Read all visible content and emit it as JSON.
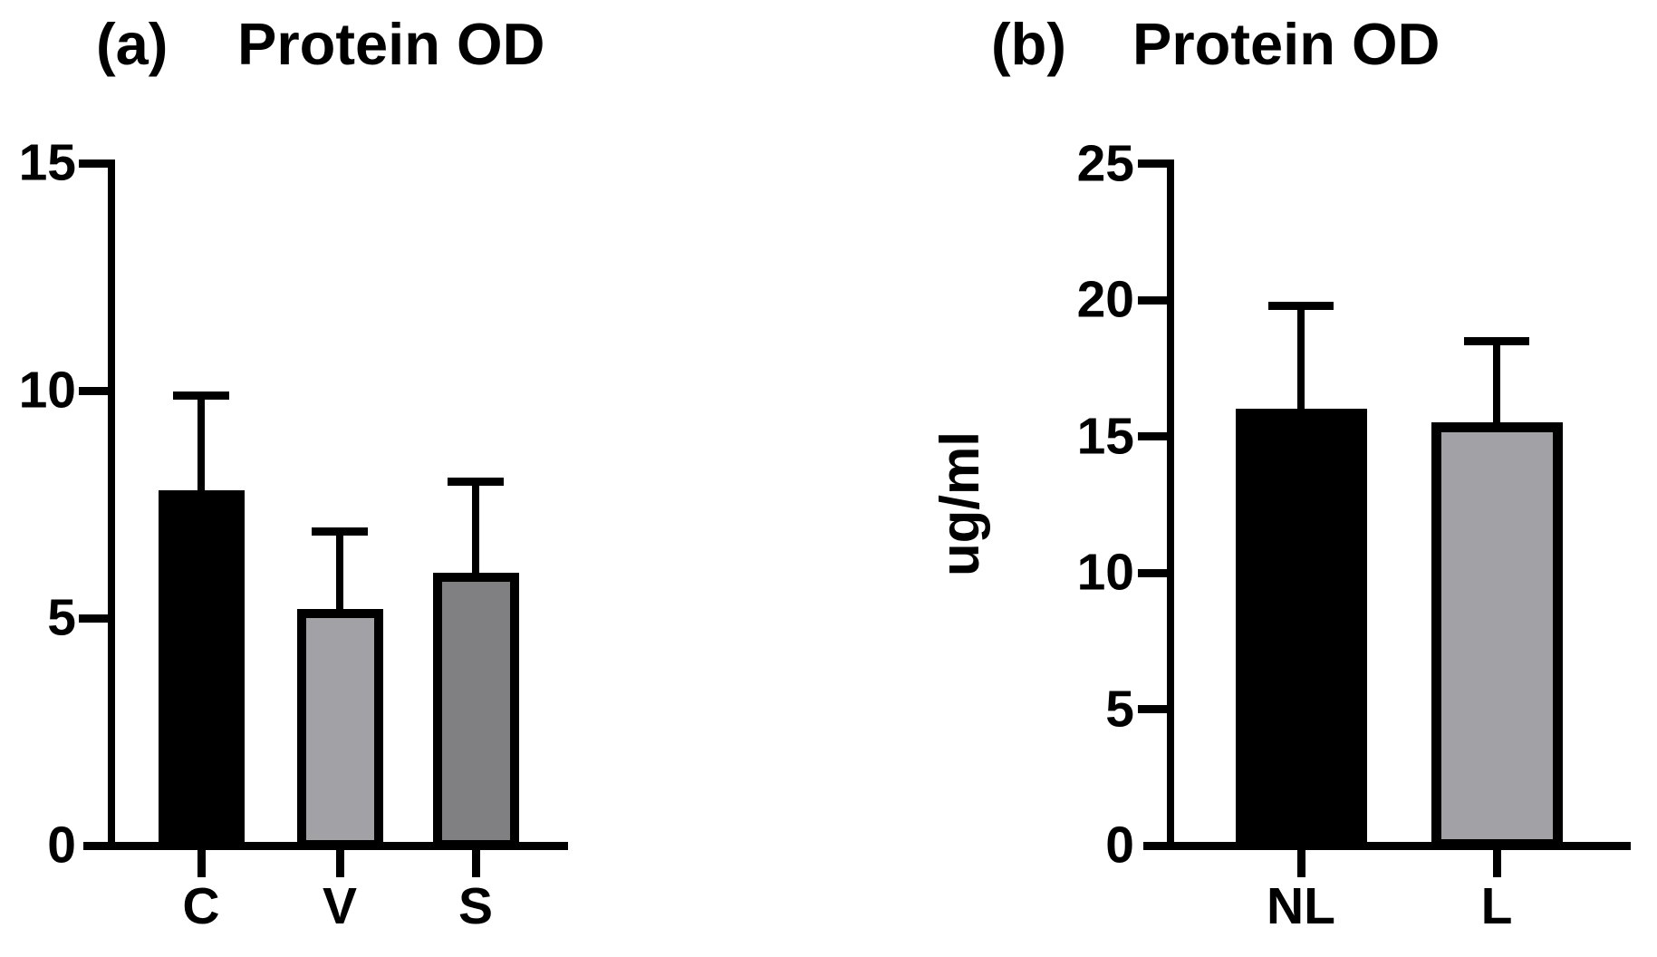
{
  "figure": {
    "background_color": "#ffffff",
    "text_color": "#000000"
  },
  "chart_data": [
    {
      "type": "bar",
      "panel_label": "(a)",
      "title": "Protein OD",
      "categories": [
        "C",
        "V",
        "S"
      ],
      "values": [
        7.8,
        5.2,
        6.0
      ],
      "error_plus": [
        2.1,
        1.7,
        2.0
      ],
      "bar_colors": [
        "#000000",
        "#a1a1a6",
        "#808083"
      ],
      "bar_border_color": "#000000",
      "xlabel": "",
      "ylabel": "",
      "ylim": [
        0,
        15
      ],
      "yticks": [
        "0",
        "5",
        "10",
        "15"
      ],
      "grid": "off",
      "legend": "none",
      "error_bar_style": "upper-only-with-cap"
    },
    {
      "type": "bar",
      "panel_label": "(b)",
      "title": "Protein OD",
      "categories": [
        "NL",
        "L"
      ],
      "values": [
        16.0,
        15.5
      ],
      "error_plus": [
        3.8,
        3.0
      ],
      "bar_colors": [
        "#000000",
        "#a1a1a6"
      ],
      "bar_border_color": "#000000",
      "xlabel": "",
      "ylabel": "ug/ml",
      "ylim": [
        0,
        25
      ],
      "yticks": [
        "0",
        "5",
        "10",
        "15",
        "20",
        "25"
      ],
      "grid": "off",
      "legend": "none",
      "error_bar_style": "upper-only-with-cap"
    }
  ]
}
